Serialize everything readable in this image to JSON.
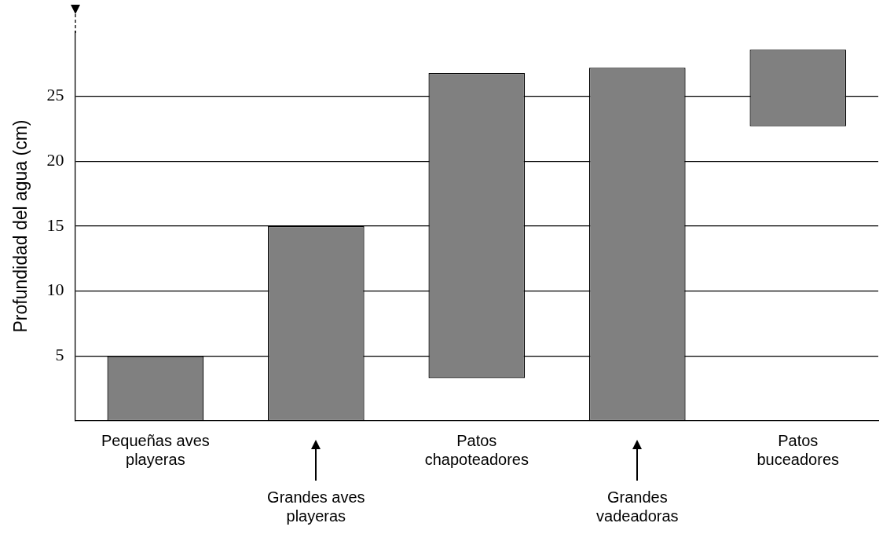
{
  "chart_data": {
    "type": "bar",
    "ylabel": "Profundidad del agua (cm)",
    "categories": [
      "Pequeñas aves\nplayeras",
      "Grandes aves\nplayeras",
      "Patos\nchapoteadores",
      "Grandes\nvadeadoras",
      "Patos\nbuceadores"
    ],
    "values": [
      5,
      15,
      23.5,
      27.2,
      5.9
    ],
    "base": [
      0,
      0,
      3.3,
      0,
      22.7
    ],
    "color": "#808080",
    "ylim": [
      0,
      30
    ],
    "yticks": [
      5,
      10,
      15,
      20,
      25
    ],
    "grid": "y"
  }
}
